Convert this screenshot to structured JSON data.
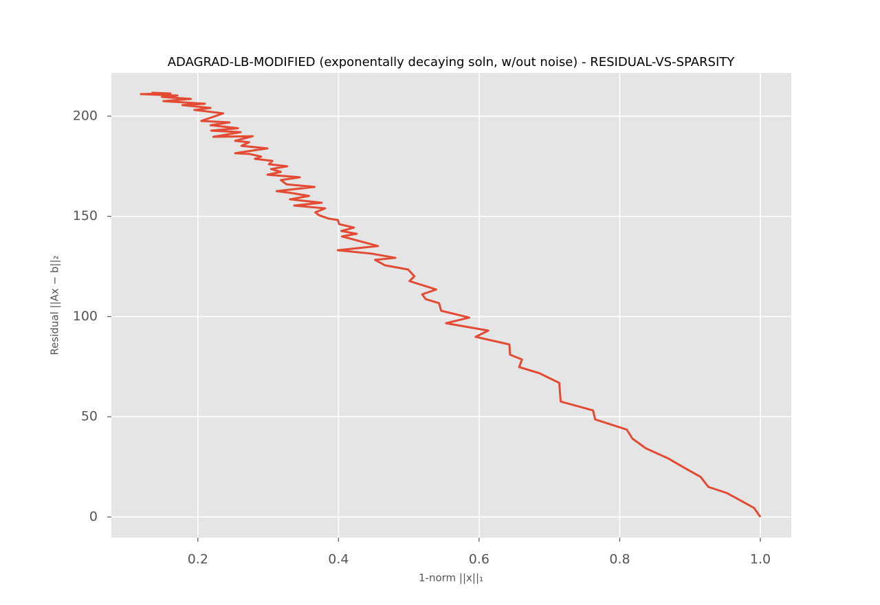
{
  "chart_data": {
    "type": "line",
    "title": "ADAGRAD-LB-MODIFIED (exponentally decaying soln, w/out noise) - RESIDUAL-VS-SPARSITY",
    "x_label": "1-norm ||x||₁",
    "y_label": "Residual ||Ax − b||₂",
    "xlim": [
      0.077,
      1.044
    ],
    "ylim": [
      -10.3,
      221.6
    ],
    "xticks": [
      0.2,
      0.4,
      0.6,
      0.8,
      {
        "value": 1,
        "label": "1.0"
      }
    ],
    "yticks": [
      0,
      50,
      100,
      150,
      200
    ],
    "grid": true,
    "series": [
      {
        "name": "residual",
        "color": "#e24a33",
        "x": [
          1.0,
          0.991,
          0.952,
          0.926,
          0.915,
          0.891,
          0.869,
          0.837,
          0.818,
          0.81,
          0.765,
          0.762,
          0.716,
          0.714,
          0.686,
          0.657,
          0.661,
          0.644,
          0.643,
          0.595,
          0.613,
          0.553,
          0.586,
          0.546,
          0.543,
          0.524,
          0.519,
          0.539,
          0.501,
          0.508,
          0.499,
          0.466,
          0.452,
          0.481,
          0.447,
          0.399,
          0.456,
          0.405,
          0.426,
          0.404,
          0.422,
          0.401,
          0.399,
          0.386,
          0.372,
          0.367,
          0.381,
          0.337,
          0.376,
          0.331,
          0.358,
          0.334,
          0.312,
          0.366,
          0.326,
          0.318,
          0.345,
          0.299,
          0.318,
          0.304,
          0.327,
          0.301,
          0.306,
          0.281,
          0.29,
          0.274,
          0.253,
          0.277,
          0.299,
          0.262,
          0.273,
          0.253,
          0.278,
          0.222,
          0.261,
          0.219,
          0.257,
          0.218,
          0.245,
          0.205,
          0.236,
          0.195,
          0.218,
          0.178,
          0.21,
          0.151,
          0.19,
          0.149,
          0.171,
          0.119,
          0.161,
          0.134
        ],
        "values": [
          0,
          4.5,
          12,
          15,
          20,
          24.7,
          29.2,
          34.3,
          39.1,
          43.6,
          48.7,
          53.2,
          57.6,
          66.9,
          71.7,
          74.8,
          78.6,
          81,
          86.1,
          89.9,
          93,
          96.7,
          99.5,
          102.9,
          106.7,
          108.7,
          111.1,
          113.5,
          117.7,
          120.1,
          123.5,
          125.6,
          128.3,
          129.3,
          131.4,
          133.1,
          135.2,
          140,
          141.3,
          142.7,
          144.4,
          146.1,
          148.2,
          148.9,
          150.6,
          152,
          154,
          155.4,
          156.8,
          158.5,
          160.2,
          161.6,
          162.6,
          164.7,
          166,
          168.1,
          169.5,
          170.8,
          172.2,
          173.6,
          175,
          176,
          177.7,
          178.7,
          179.8,
          181.1,
          181.5,
          182.8,
          183.9,
          185.2,
          187,
          187.7,
          190,
          189.7,
          192,
          192.8,
          194,
          195.5,
          196.9,
          197.6,
          201.4,
          203.1,
          204.1,
          205.5,
          206.2,
          207.5,
          208.6,
          209.6,
          210.3,
          211,
          211.3,
          211.7
        ]
      }
    ]
  }
}
